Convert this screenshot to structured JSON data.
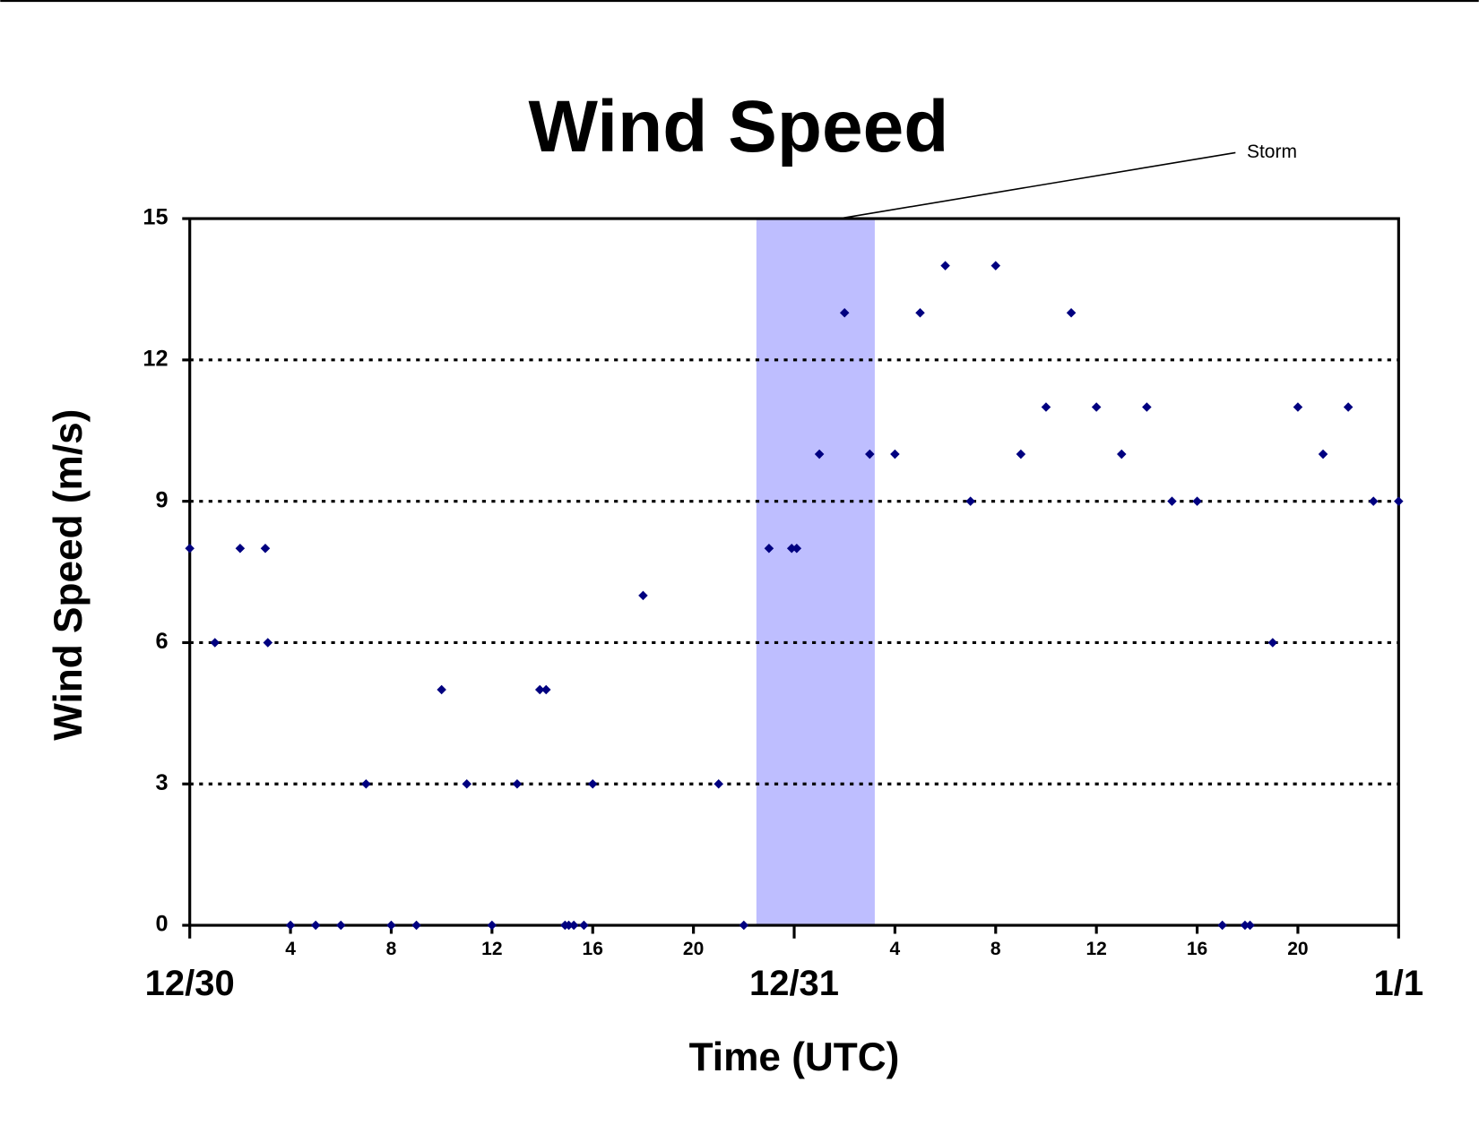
{
  "chart_data": {
    "type": "scatter",
    "title": "Wind Speed",
    "x_label": "Time (UTC)",
    "y_label": "Wind Speed (m/s)",
    "color": "#000080",
    "xlim": [
      0,
      48
    ],
    "xticks": [
      {
        "value": 0,
        "label": "12/30"
      },
      4,
      8,
      12,
      16,
      20,
      {
        "value": 24,
        "label": "12/31"
      },
      {
        "value": 28,
        "label": "4"
      },
      {
        "value": 32,
        "label": "8"
      },
      {
        "value": 36,
        "label": "12"
      },
      {
        "value": 40,
        "label": "16"
      },
      {
        "value": 44,
        "label": "20"
      },
      {
        "value": 48,
        "label": "1/1"
      }
    ],
    "ylim": [
      0,
      15
    ],
    "yticks": [
      0,
      3,
      6,
      9,
      12,
      15
    ],
    "grid": true,
    "annotation": {
      "text": "Storm",
      "start": 22.5,
      "end": 27.2,
      "color": "#bebeff"
    },
    "x": [
      0,
      1,
      2,
      3,
      3.1,
      4,
      5,
      6,
      7,
      8,
      9,
      10,
      11,
      12,
      13,
      13.9,
      14.15,
      14.9,
      15.05,
      15.25,
      15.65,
      16,
      18,
      21,
      22,
      23,
      23.9,
      24.1,
      25,
      26,
      27,
      28,
      29,
      30,
      31,
      32,
      33,
      34,
      35,
      36,
      37,
      38,
      39,
      40,
      41,
      41.9,
      42.1,
      43,
      44,
      45,
      46,
      47,
      48
    ],
    "values": [
      8,
      6,
      8,
      8,
      6,
      0,
      0,
      0,
      3,
      0,
      0,
      5,
      3,
      0,
      3,
      5,
      5,
      0,
      0,
      0,
      0,
      3,
      7,
      3,
      0,
      8,
      8,
      8,
      10,
      13,
      10,
      10,
      13,
      14,
      9,
      14,
      10,
      11,
      13,
      11,
      10,
      11,
      9,
      9,
      0,
      0,
      0,
      6,
      11,
      10,
      11,
      9,
      9
    ]
  }
}
